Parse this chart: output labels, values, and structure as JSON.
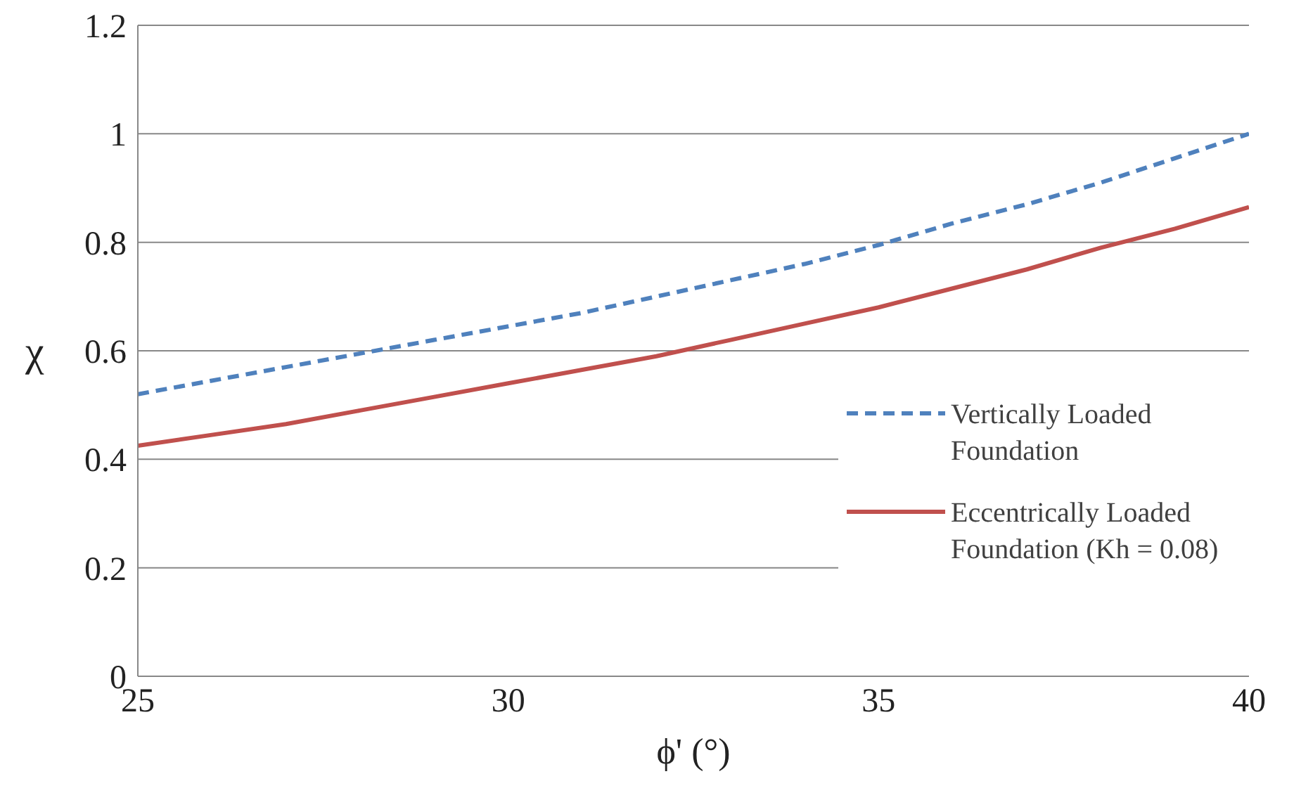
{
  "chart_data": {
    "type": "line",
    "xlabel": "ϕ' (°)",
    "ylabel": "χ",
    "x": [
      25,
      26,
      27,
      28,
      29,
      30,
      31,
      32,
      33,
      34,
      35,
      36,
      37,
      38,
      39,
      40
    ],
    "series": [
      {
        "name": "Vertically Loaded Foundation",
        "color": "#4f81bd",
        "line_style": "dashed",
        "values": [
          0.52,
          0.545,
          0.57,
          0.595,
          0.62,
          0.645,
          0.67,
          0.7,
          0.73,
          0.76,
          0.795,
          0.835,
          0.87,
          0.91,
          0.955,
          1.0
        ]
      },
      {
        "name": "Eccentrically Loaded Foundation (Kh = 0.08)",
        "color": "#c0504d",
        "line_style": "solid",
        "values": [
          0.425,
          0.445,
          0.465,
          0.49,
          0.515,
          0.54,
          0.565,
          0.59,
          0.62,
          0.65,
          0.68,
          0.715,
          0.75,
          0.79,
          0.825,
          0.865
        ]
      }
    ],
    "xlim": [
      25,
      40
    ],
    "xticks": [
      25,
      30,
      35,
      40
    ],
    "ylim": [
      0,
      1.2
    ],
    "yticks": [
      0,
      0.2,
      0.4,
      0.6,
      0.8,
      1,
      1.2
    ],
    "grid": "y",
    "legend": "right",
    "marker": "none"
  }
}
